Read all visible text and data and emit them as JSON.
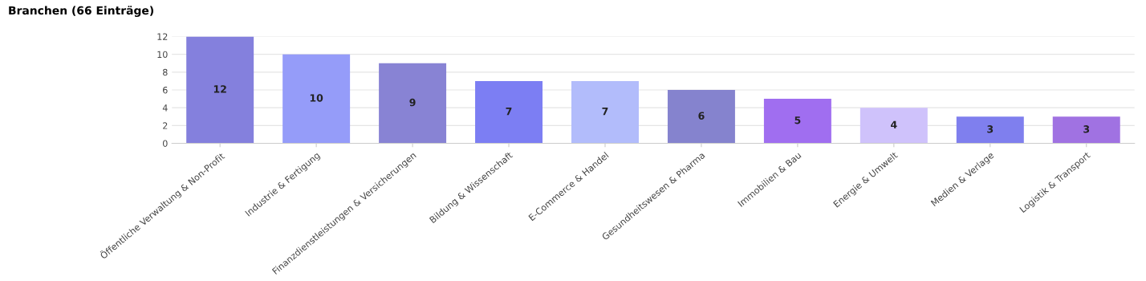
{
  "chart_data": {
    "type": "bar",
    "title": "Branchen (66 Einträge)",
    "categories": [
      "Öffentliche Verwaltung & Non-Profit",
      "Industrie & Fertigung",
      "Finanzdienstleistungen & Versicherungen",
      "Bildung & Wissenschaft",
      "E-Commerce & Handel",
      "Gesundheitswesen & Pharma",
      "Immobilien & Bau",
      "Energie & Umwelt",
      "Medien & Verlage",
      "Logistik & Transport"
    ],
    "values": [
      12,
      10,
      9,
      7,
      7,
      6,
      5,
      4,
      3,
      3
    ],
    "colors": [
      "#8480dd",
      "#959cf9",
      "#8883d4",
      "#7c7ef3",
      "#b2bcfb",
      "#8583ce",
      "#a06ef0",
      "#cfc2fb",
      "#7f7fee",
      "#a072e2"
    ],
    "ylim": [
      0,
      12
    ],
    "yticks": [
      0,
      2,
      4,
      6,
      8,
      10,
      12
    ],
    "grid": "y",
    "data_labels": true
  }
}
